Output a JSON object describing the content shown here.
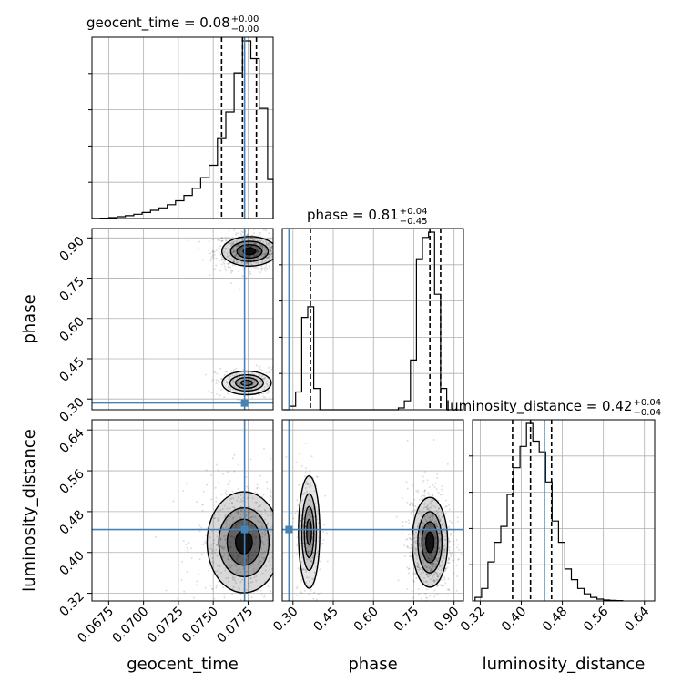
{
  "chart_data": {
    "type": "corner",
    "parameters": [
      "geocent_time",
      "phase",
      "luminosity_distance"
    ],
    "truth_color": "#4682b4",
    "truths": {
      "geocent_time": 0.07725,
      "phase": 0.285,
      "luminosity_distance": 0.445
    },
    "ranges": {
      "geocent_time": [
        0.0663,
        0.0793
      ],
      "phase": [
        0.26,
        0.935
      ],
      "luminosity_distance": [
        0.305,
        0.66
      ]
    },
    "ticks": {
      "geocent_time": {
        "values": [
          0.0675,
          0.07,
          0.0725,
          0.075,
          0.0775
        ],
        "labels": [
          "0.0675",
          "0.0700",
          "0.0725",
          "0.0750",
          "0.0775"
        ]
      },
      "phase": {
        "values": [
          0.3,
          0.45,
          0.6,
          0.75,
          0.9
        ],
        "labels": [
          "0.30",
          "0.45",
          "0.60",
          "0.75",
          "0.90"
        ]
      },
      "luminosity_distance": {
        "values": [
          0.32,
          0.4,
          0.48,
          0.56,
          0.64
        ],
        "labels": [
          "0.32",
          "0.40",
          "0.48",
          "0.56",
          "0.64"
        ]
      }
    },
    "histograms": {
      "geocent_time": {
        "quantiles": [
          0.0756,
          0.0771,
          0.0781
        ],
        "bins": [
          [
            0.0663,
            0.0006
          ],
          [
            0.0669,
            0.002
          ],
          [
            0.0675,
            0.005
          ],
          [
            0.0681,
            0.01
          ],
          [
            0.0687,
            0.016
          ],
          [
            0.0693,
            0.024
          ],
          [
            0.0699,
            0.034
          ],
          [
            0.0705,
            0.046
          ],
          [
            0.0711,
            0.06
          ],
          [
            0.0717,
            0.078
          ],
          [
            0.0723,
            0.1
          ],
          [
            0.0729,
            0.13
          ],
          [
            0.0735,
            0.17
          ],
          [
            0.0741,
            0.23
          ],
          [
            0.0747,
            0.3
          ],
          [
            0.0753,
            0.45
          ],
          [
            0.0759,
            0.6
          ],
          [
            0.0765,
            0.82
          ],
          [
            0.0771,
            1.0
          ],
          [
            0.0777,
            0.9
          ],
          [
            0.0783,
            0.62
          ],
          [
            0.0789,
            0.22
          ]
        ]
      },
      "phase": {
        "quantiles": [
          0.365,
          0.81,
          0.85
        ],
        "bins": [
          [
            0.265,
            0.0
          ],
          [
            0.2875,
            0.02
          ],
          [
            0.31,
            0.1
          ],
          [
            0.3325,
            0.52
          ],
          [
            0.355,
            0.58
          ],
          [
            0.3775,
            0.12
          ],
          [
            0.4,
            0.0
          ],
          [
            0.4225,
            0.0
          ],
          [
            0.445,
            0.0
          ],
          [
            0.4675,
            0.0
          ],
          [
            0.49,
            0.0
          ],
          [
            0.5125,
            0.0
          ],
          [
            0.535,
            0.0
          ],
          [
            0.5575,
            0.0
          ],
          [
            0.58,
            0.0
          ],
          [
            0.6025,
            0.0
          ],
          [
            0.625,
            0.0
          ],
          [
            0.6475,
            0.0
          ],
          [
            0.67,
            0.0
          ],
          [
            0.6925,
            0.01
          ],
          [
            0.715,
            0.05
          ],
          [
            0.7375,
            0.28
          ],
          [
            0.76,
            0.85
          ],
          [
            0.7825,
            0.97
          ],
          [
            0.805,
            1.0
          ],
          [
            0.8275,
            0.65
          ],
          [
            0.85,
            0.12
          ],
          [
            0.8725,
            0.0
          ],
          [
            0.895,
            0.0
          ]
        ]
      },
      "luminosity_distance": {
        "quantiles": [
          0.383,
          0.418,
          0.459
        ],
        "bins": [
          [
            0.31,
            0.02
          ],
          [
            0.3225,
            0.07
          ],
          [
            0.335,
            0.22
          ],
          [
            0.3475,
            0.33
          ],
          [
            0.36,
            0.42
          ],
          [
            0.3725,
            0.6
          ],
          [
            0.385,
            0.75
          ],
          [
            0.3975,
            0.87
          ],
          [
            0.41,
            1.0
          ],
          [
            0.4225,
            0.9
          ],
          [
            0.435,
            0.84
          ],
          [
            0.4475,
            0.67
          ],
          [
            0.46,
            0.45
          ],
          [
            0.4725,
            0.33
          ],
          [
            0.485,
            0.18
          ],
          [
            0.4975,
            0.12
          ],
          [
            0.51,
            0.07
          ],
          [
            0.5225,
            0.04
          ],
          [
            0.535,
            0.02
          ],
          [
            0.5475,
            0.01
          ],
          [
            0.56,
            0.005
          ],
          [
            0.5725,
            0.003
          ],
          [
            0.585,
            0.002
          ]
        ]
      }
    },
    "titles": [
      {
        "param": "geocent_time",
        "text": "geocent_time = 0.08",
        "upper": "+0.00",
        "lower": "−0.00"
      },
      {
        "param": "phase",
        "text": "phase = 0.81",
        "upper": "+0.04",
        "lower": "−0.45"
      },
      {
        "param": "luminosity_distance",
        "text": "luminosity_distance = 0.42",
        "upper": "+0.04",
        "lower": "−0.04"
      }
    ],
    "xlabels": [
      "geocent_time",
      "phase",
      "luminosity_distance"
    ],
    "ylabels": [
      "phase",
      "luminosity_distance"
    ],
    "joint_modes": {
      "phase_vs_geocent_time": [
        {
          "x": 0.0776,
          "y": 0.85,
          "sx": 0.0009,
          "sy": 0.025,
          "w": 1.0
        },
        {
          "x": 0.0774,
          "y": 0.36,
          "sx": 0.0008,
          "sy": 0.02,
          "w": 0.35
        }
      ],
      "luminosity_distance_vs_geocent_time": [
        {
          "x": 0.0772,
          "y": 0.42,
          "sx": 0.0012,
          "sy": 0.045,
          "w": 1.0
        }
      ],
      "luminosity_distance_vs_phase": [
        {
          "x": 0.36,
          "y": 0.44,
          "sx": 0.018,
          "sy": 0.05,
          "w": 0.45
        },
        {
          "x": 0.81,
          "y": 0.42,
          "sx": 0.03,
          "sy": 0.04,
          "w": 1.0
        }
      ]
    }
  }
}
